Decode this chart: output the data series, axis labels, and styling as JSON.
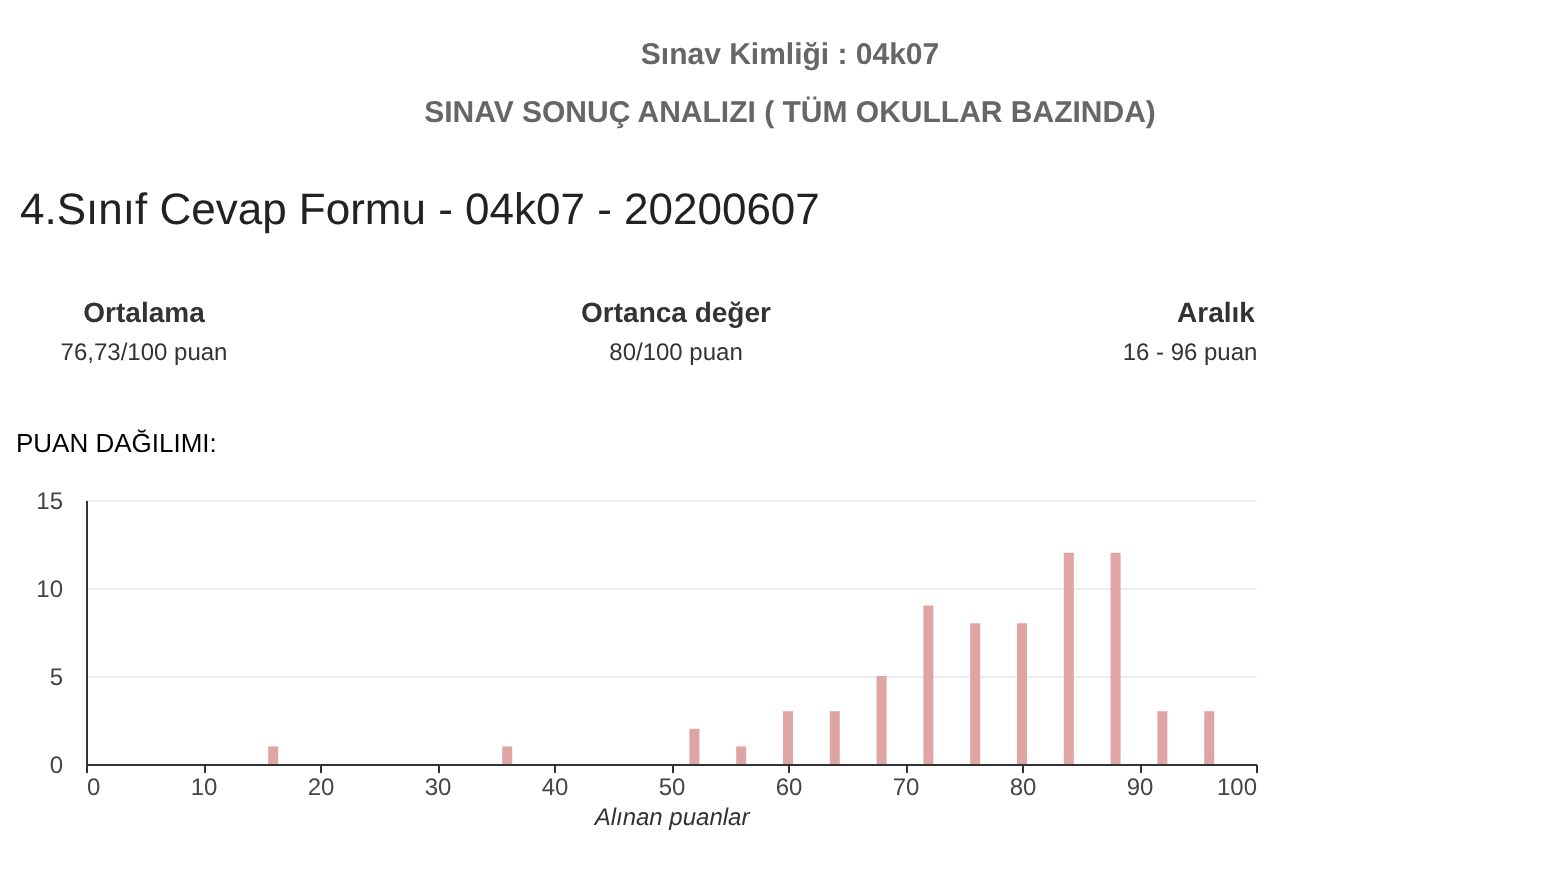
{
  "chart_data": {
    "type": "bar",
    "title": "Sınav Kimliği : 04k07",
    "subtitle": "SINAV SONUÇ ANALIZI  ( TÜM OKULLAR BAZINDA)",
    "xlabel": "Alınan puanlar",
    "x": [
      16,
      36,
      52,
      56,
      60,
      64,
      68,
      72,
      76,
      80,
      84,
      88,
      92,
      96
    ],
    "values": [
      1,
      1,
      2,
      1,
      3,
      3,
      5,
      9,
      8,
      8,
      12,
      12,
      3,
      3
    ],
    "color": "#dea5a4",
    "xlim": [
      0,
      100
    ],
    "xticks": [
      0,
      10,
      20,
      30,
      40,
      50,
      60,
      70,
      80,
      90,
      100
    ],
    "ylim": [
      0,
      15
    ],
    "yticks": [
      0,
      5,
      10,
      15
    ],
    "grid": "y",
    "annotations": [
      "4.Sınıf Cevap Formu - 04k07 - 20200607",
      "Ortalama",
      "76,73/100 puan",
      "Ortanca değer",
      "80/100 puan",
      "Aralık",
      "16 - 96 puan",
      "PUAN DAĞILIMI:"
    ]
  }
}
